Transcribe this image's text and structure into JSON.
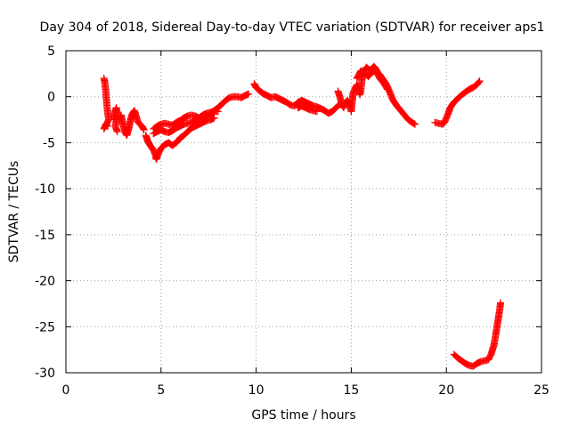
{
  "chart_data": {
    "type": "scatter",
    "title": "Day 304 of 2018, Sidereal Day-to-day VTEC variation (SDTVAR) for receiver aps1",
    "xlabel": "GPS time / hours",
    "ylabel": "SDTVAR / TECUs",
    "xlim": [
      0,
      25
    ],
    "ylim": [
      -30,
      5
    ],
    "xticks": [
      0,
      5,
      10,
      15,
      20,
      25
    ],
    "yticks": [
      5,
      0,
      -5,
      -10,
      -15,
      -20,
      -25,
      -30
    ],
    "grid": true,
    "legend": "none",
    "marker": "+",
    "series": [
      {
        "name": "SDTVAR",
        "color": "#ff0000",
        "segments": [
          [
            [
              2.0,
              2.0
            ],
            [
              2.05,
              1.5
            ],
            [
              2.1,
              0.5
            ],
            [
              2.15,
              -0.8
            ],
            [
              2.2,
              -1.8
            ],
            [
              2.25,
              -2.5
            ],
            [
              2.0,
              -3.5
            ],
            [
              2.1,
              -3.0
            ],
            [
              2.2,
              -3.2
            ]
          ],
          [
            [
              2.5,
              -2.5
            ],
            [
              2.6,
              -1.5
            ],
            [
              2.65,
              -1.2
            ],
            [
              2.7,
              -2.0
            ],
            [
              2.6,
              -3.2
            ],
            [
              2.7,
              -3.8
            ]
          ],
          [
            [
              2.8,
              -2.5
            ],
            [
              2.9,
              -2.0
            ],
            [
              3.0,
              -3.0
            ],
            [
              3.1,
              -3.8
            ],
            [
              3.2,
              -4.2
            ],
            [
              3.3,
              -3.5
            ],
            [
              3.4,
              -2.5
            ],
            [
              3.5,
              -1.8
            ],
            [
              3.6,
              -1.5
            ],
            [
              3.7,
              -2.2
            ],
            [
              3.8,
              -2.8
            ],
            [
              3.9,
              -3.0
            ],
            [
              4.0,
              -3.2
            ],
            [
              4.1,
              -3.6
            ]
          ],
          [
            [
              4.2,
              -4.2
            ],
            [
              4.3,
              -4.8
            ],
            [
              4.4,
              -5.2
            ],
            [
              4.5,
              -5.5
            ],
            [
              4.6,
              -5.8
            ],
            [
              4.7,
              -6.3
            ],
            [
              4.75,
              -6.8
            ],
            [
              4.8,
              -6.5
            ],
            [
              4.9,
              -6.0
            ],
            [
              5.0,
              -5.6
            ],
            [
              5.2,
              -5.2
            ],
            [
              5.4,
              -5.0
            ],
            [
              5.6,
              -5.3
            ],
            [
              5.8,
              -5.0
            ],
            [
              6.0,
              -4.5
            ],
            [
              6.2,
              -4.2
            ],
            [
              6.4,
              -3.8
            ],
            [
              6.6,
              -3.4
            ],
            [
              6.8,
              -3.2
            ],
            [
              7.0,
              -3.0
            ],
            [
              7.2,
              -2.8
            ],
            [
              7.4,
              -2.6
            ],
            [
              7.6,
              -2.5
            ],
            [
              7.8,
              -2.3
            ]
          ],
          [
            [
              4.6,
              -3.5
            ],
            [
              4.8,
              -3.2
            ],
            [
              5.0,
              -3.0
            ],
            [
              5.2,
              -2.9
            ],
            [
              5.4,
              -3.0
            ],
            [
              5.6,
              -3.1
            ],
            [
              5.8,
              -2.8
            ],
            [
              6.0,
              -2.6
            ],
            [
              6.2,
              -2.3
            ],
            [
              6.4,
              -2.1
            ],
            [
              6.6,
              -2.0
            ],
            [
              6.8,
              -2.1
            ],
            [
              7.0,
              -2.3
            ],
            [
              7.2,
              -2.4
            ],
            [
              7.4,
              -2.2
            ],
            [
              7.6,
              -1.8
            ],
            [
              7.8,
              -1.5
            ],
            [
              8.0,
              -1.2
            ],
            [
              8.2,
              -0.8
            ],
            [
              8.4,
              -0.4
            ],
            [
              8.6,
              -0.1
            ],
            [
              8.8,
              0.0
            ],
            [
              9.0,
              0.0
            ],
            [
              9.2,
              -0.1
            ],
            [
              9.4,
              0.1
            ],
            [
              9.6,
              0.3
            ]
          ],
          [
            [
              4.6,
              -4.0
            ],
            [
              4.8,
              -3.8
            ],
            [
              5.0,
              -3.6
            ],
            [
              5.2,
              -3.8
            ],
            [
              5.4,
              -3.9
            ],
            [
              5.6,
              -3.7
            ],
            [
              5.8,
              -3.4
            ],
            [
              6.0,
              -3.2
            ],
            [
              6.2,
              -3.0
            ],
            [
              6.4,
              -2.9
            ],
            [
              6.6,
              -2.8
            ],
            [
              6.8,
              -2.6
            ],
            [
              7.0,
              -2.3
            ],
            [
              7.2,
              -2.0
            ],
            [
              7.4,
              -1.8
            ],
            [
              7.6,
              -1.7
            ],
            [
              7.8,
              -1.6
            ],
            [
              8.0,
              -1.6
            ]
          ],
          [
            [
              9.9,
              1.4
            ],
            [
              10.0,
              1.0
            ],
            [
              10.2,
              0.6
            ],
            [
              10.4,
              0.3
            ],
            [
              10.6,
              0.1
            ],
            [
              10.8,
              -0.1
            ],
            [
              11.0,
              0.0
            ],
            [
              11.2,
              -0.2
            ],
            [
              11.4,
              -0.4
            ],
            [
              11.6,
              -0.6
            ],
            [
              11.8,
              -0.9
            ],
            [
              12.0,
              -1.0
            ],
            [
              12.2,
              -0.6
            ],
            [
              12.4,
              -0.4
            ],
            [
              12.6,
              -0.6
            ],
            [
              12.8,
              -0.8
            ],
            [
              13.0,
              -1.0
            ],
            [
              13.2,
              -1.1
            ],
            [
              13.4,
              -1.3
            ],
            [
              13.6,
              -1.5
            ],
            [
              13.8,
              -1.8
            ],
            [
              14.0,
              -1.6
            ],
            [
              14.2,
              -1.2
            ],
            [
              14.35,
              -0.9
            ]
          ],
          [
            [
              12.2,
              -1.2
            ],
            [
              12.4,
              -1.0
            ],
            [
              12.6,
              -1.2
            ],
            [
              12.8,
              -1.4
            ],
            [
              13.0,
              -1.5
            ],
            [
              13.2,
              -1.6
            ]
          ],
          [
            [
              14.3,
              0.6
            ],
            [
              14.4,
              0.0
            ],
            [
              14.5,
              -0.8
            ],
            [
              14.6,
              -1.2
            ],
            [
              14.7,
              -0.6
            ],
            [
              14.8,
              -0.4
            ],
            [
              14.9,
              -0.8
            ],
            [
              15.0,
              -1.6
            ],
            [
              15.05,
              -0.5
            ],
            [
              15.1,
              0.4
            ],
            [
              15.2,
              0.9
            ],
            [
              15.3,
              1.3
            ],
            [
              15.4,
              1.0
            ],
            [
              15.45,
              0.2
            ],
            [
              15.5,
              0.6
            ],
            [
              15.55,
              1.6
            ],
            [
              15.6,
              2.4
            ],
            [
              15.7,
              2.9
            ],
            [
              15.8,
              3.2
            ],
            [
              15.9,
              3.0
            ],
            [
              16.0,
              2.9
            ],
            [
              16.1,
              3.1
            ],
            [
              16.2,
              3.3
            ],
            [
              16.3,
              3.0
            ],
            [
              16.4,
              2.6
            ],
            [
              16.5,
              2.4
            ],
            [
              16.6,
              2.1
            ],
            [
              16.7,
              1.8
            ],
            [
              16.8,
              1.5
            ],
            [
              16.9,
              1.1
            ],
            [
              17.0,
              0.6
            ],
            [
              17.1,
              0.1
            ],
            [
              17.2,
              -0.4
            ],
            [
              17.4,
              -1.0
            ],
            [
              17.6,
              -1.5
            ],
            [
              17.8,
              -2.0
            ],
            [
              18.0,
              -2.5
            ],
            [
              18.2,
              -2.8
            ],
            [
              18.35,
              -3.0
            ]
          ],
          [
            [
              15.3,
              2.0
            ],
            [
              15.5,
              2.8
            ],
            [
              15.7,
              2.5
            ],
            [
              15.9,
              2.2
            ],
            [
              16.1,
              2.7
            ],
            [
              16.3,
              2.8
            ],
            [
              16.5,
              2.0
            ],
            [
              16.7,
              1.5
            ],
            [
              16.9,
              0.8
            ]
          ],
          [
            [
              19.4,
              -2.8
            ],
            [
              19.6,
              -2.9
            ],
            [
              19.8,
              -3.0
            ],
            [
              19.9,
              -2.8
            ],
            [
              20.0,
              -2.3
            ],
            [
              20.1,
              -1.8
            ],
            [
              20.2,
              -1.2
            ],
            [
              20.4,
              -0.6
            ],
            [
              20.6,
              -0.2
            ],
            [
              20.8,
              0.2
            ],
            [
              21.0,
              0.5
            ],
            [
              21.2,
              0.8
            ],
            [
              21.4,
              1.0
            ],
            [
              21.6,
              1.3
            ],
            [
              21.75,
              1.7
            ]
          ],
          [
            [
              20.4,
              -28.0
            ],
            [
              20.6,
              -28.4
            ],
            [
              20.8,
              -28.7
            ],
            [
              21.0,
              -29.0
            ],
            [
              21.2,
              -29.2
            ],
            [
              21.4,
              -29.3
            ],
            [
              21.6,
              -29.0
            ],
            [
              21.8,
              -28.8
            ],
            [
              22.0,
              -28.7
            ],
            [
              22.2,
              -28.6
            ],
            [
              22.35,
              -28.0
            ],
            [
              22.5,
              -27.0
            ],
            [
              22.6,
              -25.8
            ],
            [
              22.7,
              -24.5
            ],
            [
              22.8,
              -23.2
            ],
            [
              22.85,
              -22.4
            ]
          ]
        ]
      }
    ]
  }
}
